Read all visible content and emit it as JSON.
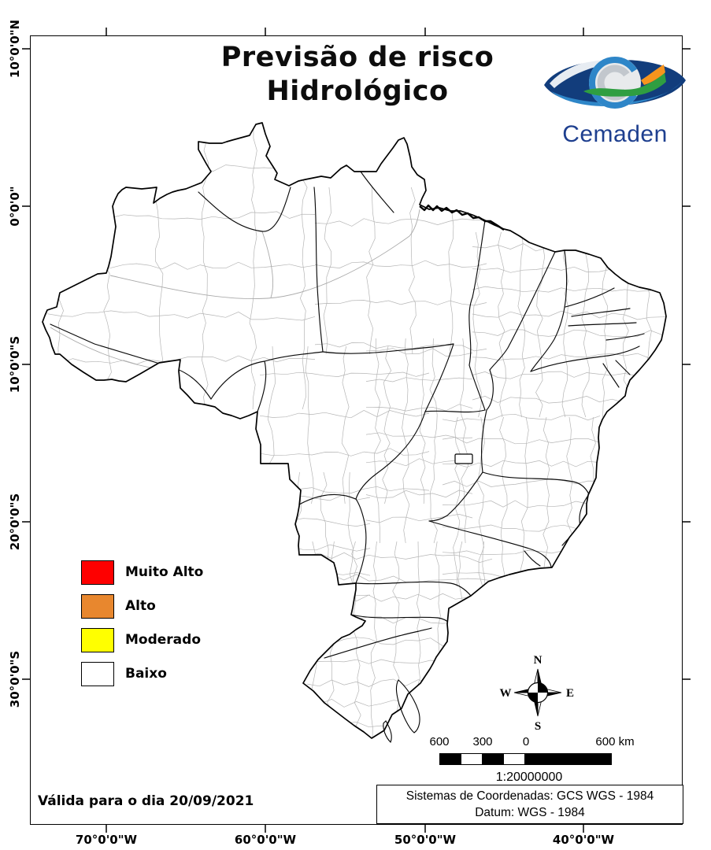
{
  "title": {
    "line1": "Previsão de risco",
    "line2": "Hidrológico"
  },
  "logo": {
    "text": "Cemaden"
  },
  "legend": {
    "items": [
      {
        "label": "Muito Alto",
        "color": "#FE0000"
      },
      {
        "label": "Alto",
        "color": "#E8872E"
      },
      {
        "label": "Moderado",
        "color": "#FFFF00"
      },
      {
        "label": "Baixo",
        "color": "#FFFFFF"
      }
    ]
  },
  "compass": {
    "n": "N",
    "s": "S",
    "e": "E",
    "w": "W"
  },
  "scalebar": {
    "labels": [
      "600",
      "300",
      "0",
      "600 km"
    ],
    "ratio": "1:20000000"
  },
  "validity": {
    "text": "Válida para o dia 20/09/2021"
  },
  "coordinate_system": {
    "line1": "Sistemas de Coordenadas: GCS WGS - 1984",
    "line2": "Datum: WGS - 1984"
  },
  "axes": {
    "latitude": [
      "10°0'0\"N",
      "0°0'0\"",
      "10°0'0\"S",
      "20°0'0\"S",
      "30°0'0\"S"
    ],
    "longitude": [
      "70°0'0\"W",
      "60°0'0\"W",
      "50°0'0\"W",
      "40°0'0\"W"
    ]
  }
}
